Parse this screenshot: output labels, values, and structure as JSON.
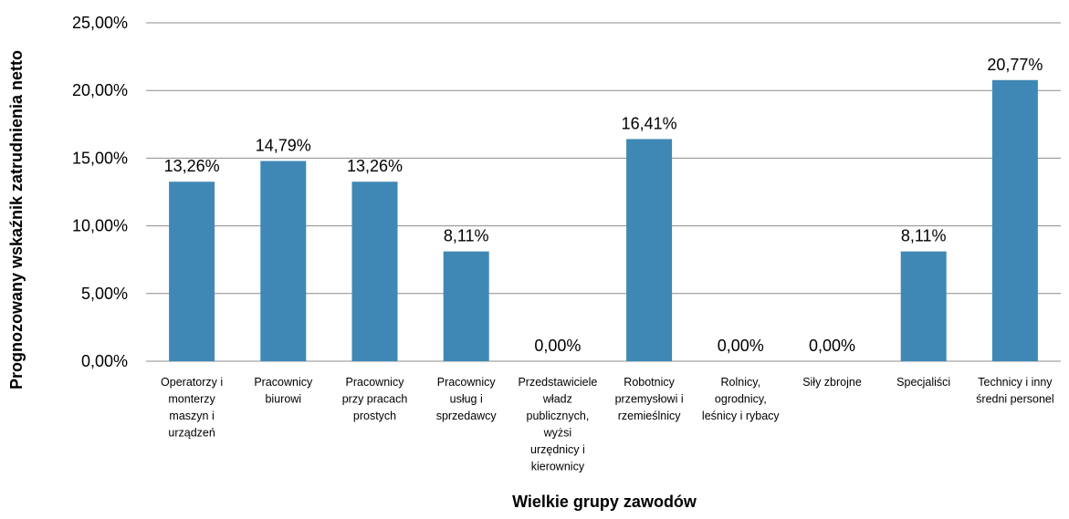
{
  "chart_data": {
    "type": "bar",
    "title": "",
    "xlabel": "Wielkie grupy zawodów",
    "ylabel": "Prognozowany  wskaźnik zatrudnienia netto",
    "ylim": [
      0,
      25
    ],
    "yticks": [
      0,
      5,
      10,
      15,
      20,
      25
    ],
    "ytick_labels": [
      "0,00%",
      "5,00%",
      "10,00%",
      "15,00%",
      "20,00%",
      "25,00%"
    ],
    "grid": true,
    "legend": "none",
    "bar_color": "#3f88b5",
    "categories": [
      [
        "Operatorzy i",
        "monterzy",
        "maszyn i",
        "urządzeń"
      ],
      [
        "Pracownicy",
        "biurowi"
      ],
      [
        "Pracownicy",
        "przy pracach",
        "prostych"
      ],
      [
        "Pracownicy",
        "usług i",
        "sprzedawcy"
      ],
      [
        "Przedstawiciele",
        "władz",
        "publicznych,",
        "wyżsi",
        "urzędnicy i",
        "kierownicy"
      ],
      [
        "Robotnicy",
        "przemysłowi i",
        "rzemieślnicy"
      ],
      [
        "Rolnicy,",
        "ogrodnicy,",
        "leśnicy i rybacy"
      ],
      [
        "Siły zbrojne"
      ],
      [
        "Specjaliści"
      ],
      [
        "Technicy i inny",
        "średni personel"
      ]
    ],
    "values": [
      13.26,
      14.79,
      13.26,
      8.11,
      0.0,
      16.41,
      0.0,
      0.0,
      8.11,
      20.77
    ],
    "data_labels": [
      "13,26%",
      "14,79%",
      "13,26%",
      "8,11%",
      "0,00%",
      "16,41%",
      "0,00%",
      "0,00%",
      "8,11%",
      "20,77%"
    ]
  }
}
